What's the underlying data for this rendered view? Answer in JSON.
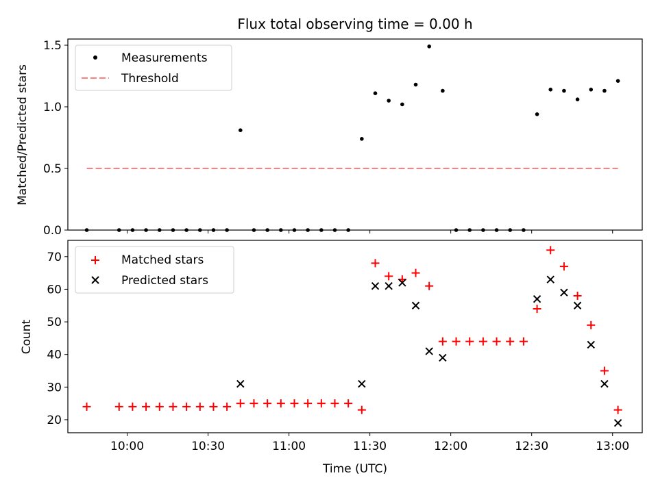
{
  "title": "Flux total observing time = 0.00 h",
  "top_panel": {
    "ylabel": "Matched/Predicted stars",
    "legend": {
      "measurements": "Measurements",
      "threshold": "Threshold"
    }
  },
  "bottom_panel": {
    "ylabel": "Count",
    "xlabel": "Time (UTC)",
    "legend": {
      "matched": "Matched stars",
      "predicted": "Predicted stars"
    }
  },
  "colors": {
    "matched": "#ff0000",
    "predicted": "#000000",
    "threshold": "#ff7f7f",
    "measurements": "#000000"
  },
  "chart_data": [
    {
      "type": "scatter",
      "title": "Flux total observing time = 0.00 h",
      "xlabel": "",
      "ylabel": "Matched/Predicted stars",
      "xlim": [
        "09:38",
        "13:11"
      ],
      "ylim": [
        0,
        1.55
      ],
      "yticks": [
        "0.0",
        "0.5",
        "1.0",
        "1.5"
      ],
      "legend_placement": "upper-left",
      "grid": false,
      "series": [
        {
          "name": "Measurements",
          "x": [
            "09:45",
            "09:57",
            "10:02",
            "10:07",
            "10:12",
            "10:17",
            "10:22",
            "10:27",
            "10:32",
            "10:37",
            "10:42",
            "10:47",
            "10:52",
            "10:57",
            "11:02",
            "11:07",
            "11:12",
            "11:17",
            "11:22",
            "11:27",
            "11:32",
            "11:37",
            "11:42",
            "11:47",
            "11:52",
            "11:57",
            "12:02",
            "12:07",
            "12:12",
            "12:17",
            "12:22",
            "12:27",
            "12:32",
            "12:37",
            "12:42",
            "12:47",
            "12:52",
            "12:57",
            "13:02"
          ],
          "y": [
            0,
            0,
            0,
            0,
            0,
            0,
            0,
            0,
            0,
            0,
            0.81,
            0,
            0,
            0,
            0,
            0,
            0,
            0,
            0,
            0.74,
            1.11,
            1.05,
            1.02,
            1.18,
            1.49,
            1.13,
            0,
            0,
            0,
            0,
            0,
            0,
            0.94,
            1.14,
            1.13,
            1.06,
            1.14,
            1.13,
            1.21
          ]
        },
        {
          "name": "Threshold",
          "x": [
            "09:45",
            "13:02"
          ],
          "y": [
            0.5,
            0.5
          ]
        }
      ]
    },
    {
      "type": "scatter",
      "xlabel": "Time (UTC)",
      "ylabel": "Count",
      "xlim": [
        "09:38",
        "13:11"
      ],
      "ylim": [
        16,
        75
      ],
      "xticks": [
        "10:00",
        "10:30",
        "11:00",
        "11:30",
        "12:00",
        "12:30",
        "13:00"
      ],
      "yticks": [
        "20",
        "30",
        "40",
        "50",
        "60",
        "70"
      ],
      "legend_placement": "upper-left",
      "grid": false,
      "series": [
        {
          "name": "Matched stars",
          "x": [
            "09:45",
            "09:57",
            "10:02",
            "10:07",
            "10:12",
            "10:17",
            "10:22",
            "10:27",
            "10:32",
            "10:37",
            "10:42",
            "10:47",
            "10:52",
            "10:57",
            "11:02",
            "11:07",
            "11:12",
            "11:17",
            "11:22",
            "11:27",
            "11:32",
            "11:37",
            "11:42",
            "11:47",
            "11:52",
            "11:57",
            "12:02",
            "12:07",
            "12:12",
            "12:17",
            "12:22",
            "12:27",
            "12:32",
            "12:37",
            "12:42",
            "12:47",
            "12:52",
            "12:57",
            "13:02"
          ],
          "y": [
            24,
            24,
            24,
            24,
            24,
            24,
            24,
            24,
            24,
            24,
            25,
            25,
            25,
            25,
            25,
            25,
            25,
            25,
            25,
            23,
            68,
            64,
            63,
            65,
            61,
            44,
            44,
            44,
            44,
            44,
            44,
            44,
            54,
            72,
            67,
            58,
            49,
            35,
            23
          ]
        },
        {
          "name": "Predicted stars",
          "x": [
            "10:42",
            "11:27",
            "11:32",
            "11:37",
            "11:42",
            "11:47",
            "11:52",
            "11:57",
            "12:32",
            "12:37",
            "12:42",
            "12:47",
            "12:52",
            "12:57",
            "13:02"
          ],
          "y": [
            31,
            31,
            61,
            61,
            62,
            55,
            41,
            39,
            57,
            63,
            59,
            55,
            43,
            31,
            19
          ]
        }
      ]
    }
  ]
}
